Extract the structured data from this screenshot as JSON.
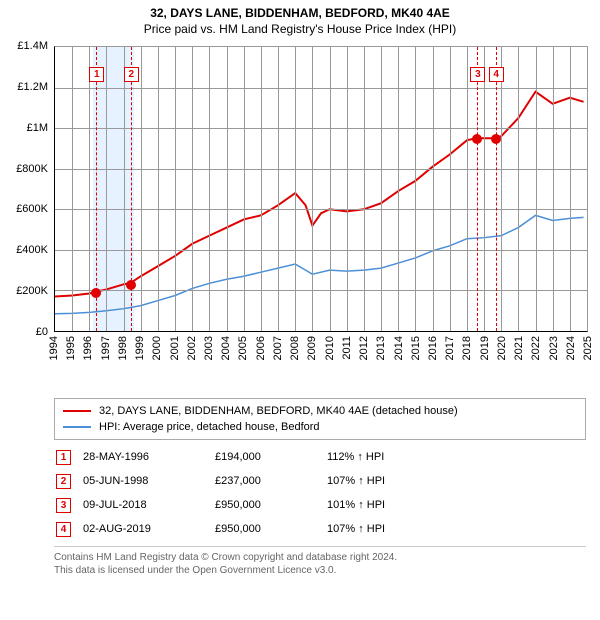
{
  "title_line1": "32, DAYS LANE, BIDDENHAM, BEDFORD, MK40 4AE",
  "title_line2": "Price paid vs. HM Land Registry's House Price Index (HPI)",
  "chart": {
    "type": "line",
    "background_color": "#ffffff",
    "grid_color": "#999999",
    "xlim": [
      1994,
      2025
    ],
    "ylim": [
      0,
      1400000
    ],
    "ytick_step": 200000,
    "yticks": [
      {
        "v": 0,
        "label": "£0"
      },
      {
        "v": 200000,
        "label": "£200K"
      },
      {
        "v": 400000,
        "label": "£400K"
      },
      {
        "v": 600000,
        "label": "£600K"
      },
      {
        "v": 800000,
        "label": "£800K"
      },
      {
        "v": 1000000,
        "label": "£1M"
      },
      {
        "v": 1200000,
        "label": "£1.2M"
      },
      {
        "v": 1400000,
        "label": "£1.4M"
      }
    ],
    "xticks": [
      1994,
      1995,
      1996,
      1997,
      1998,
      1999,
      2000,
      2001,
      2002,
      2003,
      2004,
      2005,
      2006,
      2007,
      2008,
      2009,
      2010,
      2011,
      2012,
      2013,
      2014,
      2015,
      2016,
      2017,
      2018,
      2019,
      2020,
      2021,
      2022,
      2023,
      2024,
      2025
    ],
    "vband_color": "#e6f2ff",
    "marker_dash_color": "#e00000",
    "series": [
      {
        "name": "price_paid",
        "label": "32, DAYS LANE, BIDDENHAM, BEDFORD, MK40 4AE (detached house)",
        "color": "#e00000",
        "line_width": 2,
        "points": [
          [
            1994,
            170000
          ],
          [
            1995,
            175000
          ],
          [
            1996,
            185000
          ],
          [
            1996.4,
            194000
          ],
          [
            1997,
            205000
          ],
          [
            1998,
            230000
          ],
          [
            1998.4,
            237000
          ],
          [
            1999,
            270000
          ],
          [
            2000,
            320000
          ],
          [
            2001,
            370000
          ],
          [
            2002,
            430000
          ],
          [
            2003,
            470000
          ],
          [
            2004,
            510000
          ],
          [
            2005,
            550000
          ],
          [
            2006,
            570000
          ],
          [
            2007,
            620000
          ],
          [
            2008,
            680000
          ],
          [
            2008.6,
            620000
          ],
          [
            2009,
            520000
          ],
          [
            2009.5,
            580000
          ],
          [
            2010,
            600000
          ],
          [
            2011,
            590000
          ],
          [
            2012,
            600000
          ],
          [
            2013,
            630000
          ],
          [
            2014,
            690000
          ],
          [
            2015,
            740000
          ],
          [
            2016,
            810000
          ],
          [
            2017,
            870000
          ],
          [
            2018,
            940000
          ],
          [
            2018.52,
            950000
          ],
          [
            2019,
            950000
          ],
          [
            2019.58,
            950000
          ],
          [
            2020,
            960000
          ],
          [
            2021,
            1050000
          ],
          [
            2022,
            1180000
          ],
          [
            2023,
            1120000
          ],
          [
            2024,
            1150000
          ],
          [
            2024.8,
            1130000
          ]
        ]
      },
      {
        "name": "hpi",
        "label": "HPI: Average price, detached house, Bedford",
        "color": "#4a90d9",
        "line_width": 1.5,
        "points": [
          [
            1994,
            85000
          ],
          [
            1995,
            87000
          ],
          [
            1996,
            92000
          ],
          [
            1997,
            100000
          ],
          [
            1998,
            110000
          ],
          [
            1999,
            125000
          ],
          [
            2000,
            150000
          ],
          [
            2001,
            175000
          ],
          [
            2002,
            210000
          ],
          [
            2003,
            235000
          ],
          [
            2004,
            255000
          ],
          [
            2005,
            270000
          ],
          [
            2006,
            290000
          ],
          [
            2007,
            310000
          ],
          [
            2008,
            330000
          ],
          [
            2008.6,
            300000
          ],
          [
            2009,
            280000
          ],
          [
            2010,
            300000
          ],
          [
            2011,
            295000
          ],
          [
            2012,
            300000
          ],
          [
            2013,
            310000
          ],
          [
            2014,
            335000
          ],
          [
            2015,
            360000
          ],
          [
            2016,
            395000
          ],
          [
            2017,
            420000
          ],
          [
            2018,
            455000
          ],
          [
            2019,
            460000
          ],
          [
            2020,
            470000
          ],
          [
            2021,
            510000
          ],
          [
            2022,
            570000
          ],
          [
            2023,
            545000
          ],
          [
            2024,
            555000
          ],
          [
            2024.8,
            560000
          ]
        ]
      }
    ],
    "sale_markers": [
      {
        "n": "1",
        "x": 1996.4,
        "y": 194000,
        "box_top": 0.07
      },
      {
        "n": "2",
        "x": 1998.4,
        "y": 237000,
        "box_top": 0.07
      },
      {
        "n": "3",
        "x": 2018.52,
        "y": 950000,
        "box_top": 0.07
      },
      {
        "n": "4",
        "x": 2019.58,
        "y": 950000,
        "box_top": 0.07
      }
    ]
  },
  "sales_table": [
    {
      "n": "1",
      "date": "28-MAY-1996",
      "price": "£194,000",
      "pct": "112% ↑ HPI"
    },
    {
      "n": "2",
      "date": "05-JUN-1998",
      "price": "£237,000",
      "pct": "107% ↑ HPI"
    },
    {
      "n": "3",
      "date": "09-JUL-2018",
      "price": "£950,000",
      "pct": "101% ↑ HPI"
    },
    {
      "n": "4",
      "date": "02-AUG-2019",
      "price": "£950,000",
      "pct": "107% ↑ HPI"
    }
  ],
  "footer_line1": "Contains HM Land Registry data © Crown copyright and database right 2024.",
  "footer_line2": "This data is licensed under the Open Government Licence v3.0."
}
